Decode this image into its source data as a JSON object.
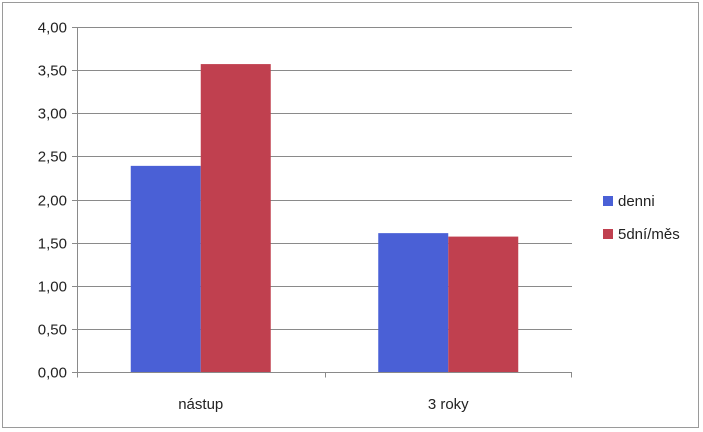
{
  "chart_data": {
    "type": "bar",
    "title": "",
    "xlabel": "",
    "ylabel": "",
    "categories": [
      "nástup",
      "3 roky"
    ],
    "series": [
      {
        "name": "denni",
        "color": "#4a60d6",
        "values": [
          2.39,
          1.61
        ]
      },
      {
        "name": "5dní/měs",
        "color": "#c0404f",
        "values": [
          3.57,
          1.57
        ]
      }
    ],
    "ylim": [
      0,
      4
    ],
    "yticks": [
      "0,00",
      "0,50",
      "1,00",
      "1,50",
      "2,00",
      "2,50",
      "3,00",
      "3,50",
      "4,00"
    ],
    "ytick_values": [
      0,
      0.5,
      1,
      1.5,
      2,
      2.5,
      3,
      3.5,
      4
    ],
    "grid": true,
    "legend_position": "right"
  }
}
